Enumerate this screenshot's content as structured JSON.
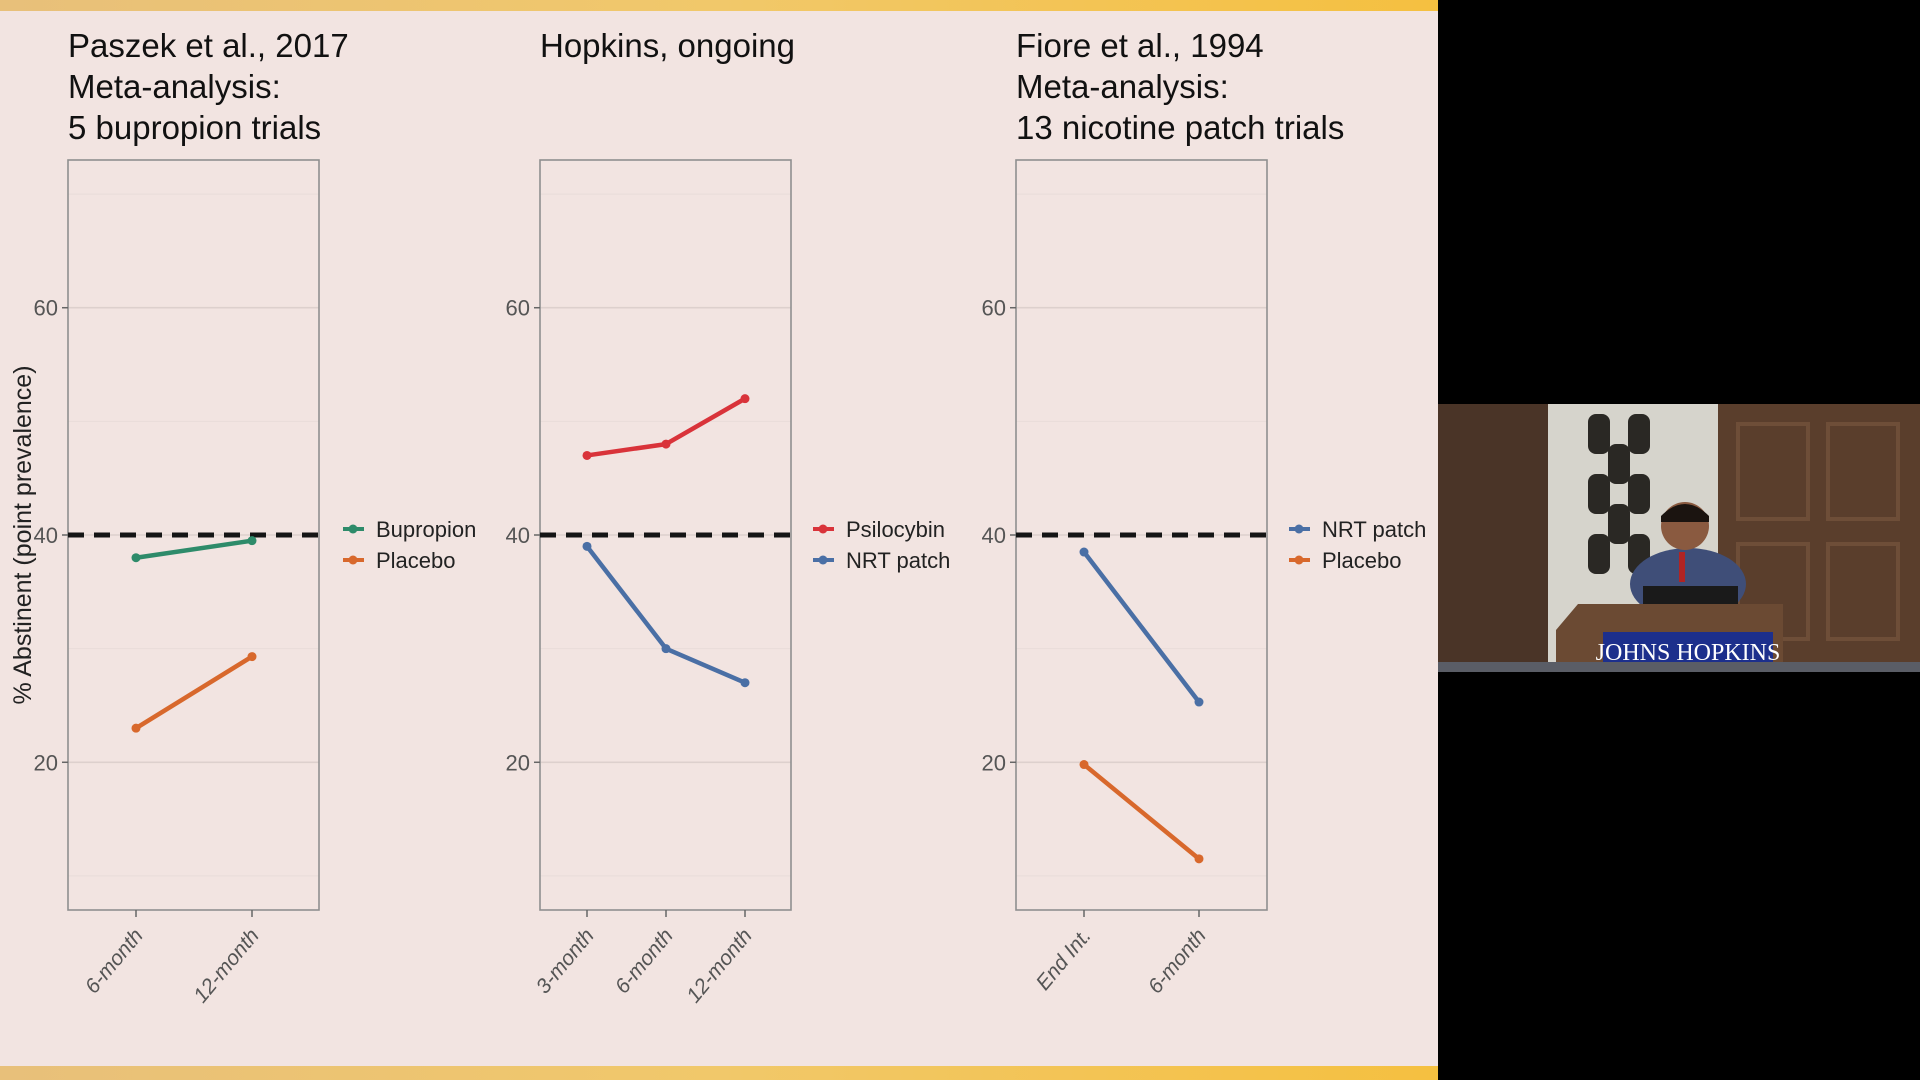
{
  "slide": {
    "ylabel": "% Abstinent (point prevalence)",
    "baseline_value": 40
  },
  "chart_data": [
    {
      "type": "line",
      "title": [
        "Paszek et al., 2017",
        "Meta-analysis:",
        "5 bupropion trials"
      ],
      "categories": [
        "6-month",
        "12-month"
      ],
      "ylim": [
        7,
        73
      ],
      "yticks": [
        20,
        40,
        60
      ],
      "grid": true,
      "legend": "right",
      "series": [
        {
          "name": "Bupropion",
          "color": "#2e8b6a",
          "values": [
            38,
            39.5
          ]
        },
        {
          "name": "Placebo",
          "color": "#d8682c",
          "values": [
            23,
            29.3
          ]
        }
      ]
    },
    {
      "type": "line",
      "title": [
        "Hopkins, ongoing"
      ],
      "categories": [
        "3-month",
        "6-month",
        "12-month"
      ],
      "ylim": [
        7,
        73
      ],
      "yticks": [
        20,
        40,
        60
      ],
      "grid": true,
      "legend": "right",
      "series": [
        {
          "name": "Psilocybin",
          "color": "#d9333a",
          "values": [
            47,
            48,
            52
          ]
        },
        {
          "name": "NRT patch",
          "color": "#4a6fa5",
          "values": [
            39,
            30,
            27
          ]
        }
      ]
    },
    {
      "type": "line",
      "title": [
        "Fiore et al., 1994",
        "Meta-analysis:",
        "13 nicotine patch trials"
      ],
      "categories": [
        "End Int.",
        "6-month"
      ],
      "ylim": [
        7,
        73
      ],
      "yticks": [
        20,
        40,
        60
      ],
      "grid": true,
      "legend": "right",
      "series": [
        {
          "name": "NRT patch",
          "color": "#4a6fa5",
          "values": [
            38.5,
            25.3
          ]
        },
        {
          "name": "Placebo",
          "color": "#d8682c",
          "values": [
            19.8,
            11.5
          ]
        }
      ]
    }
  ],
  "webcam": {
    "podium_text": "JOHNS HOPKINS"
  }
}
